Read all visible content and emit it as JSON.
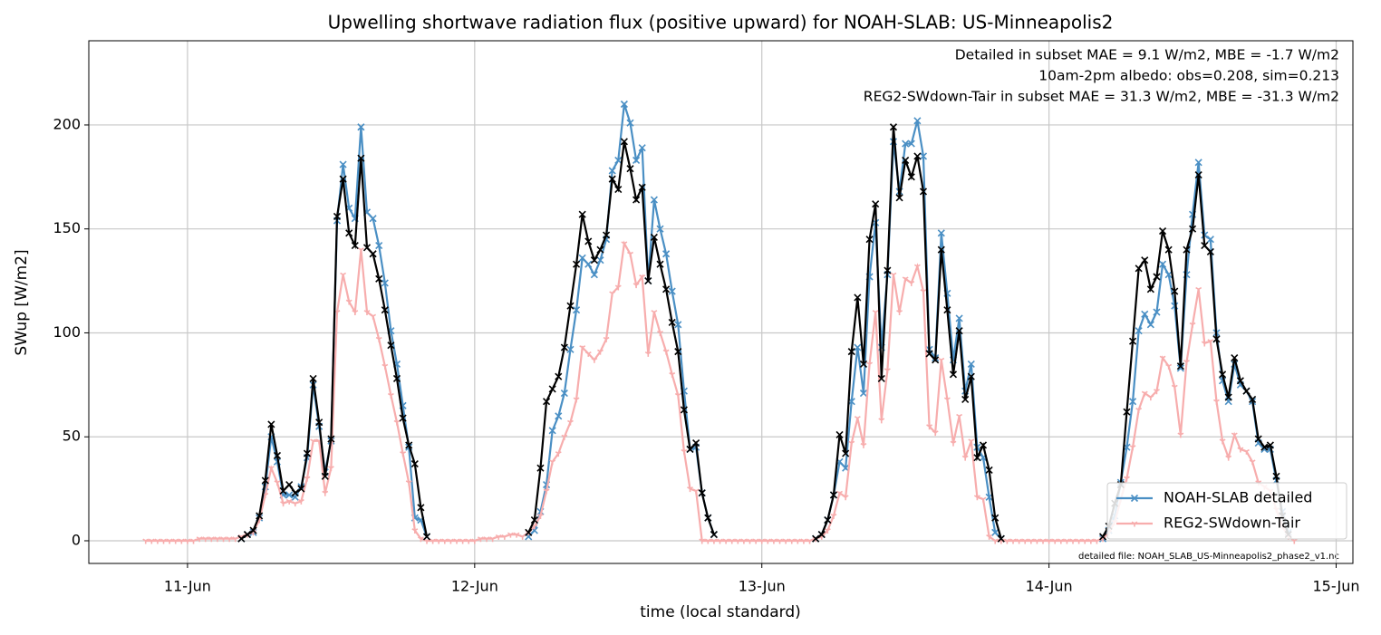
{
  "chart_data": {
    "type": "line",
    "title": "Upwelling shortwave radiation flux (positive upward) for NOAH-SLAB: US-Minneapolis2",
    "xlabel": "time (local standard)",
    "ylabel": "SWup [W/m2]",
    "annotations": [
      {
        "text": "Detailed in subset MAE = 9.1 W/m2, MBE = -1.7 W/m2",
        "color": "#1f77b4"
      },
      {
        "text": "10am-2pm albedo: obs=0.208, sim=0.213",
        "color": "#000000"
      },
      {
        "text": "REG2-SWdown-Tair in subset MAE = 31.3 W/m2, MBE = -31.3 W/m2",
        "color": "#ff0000"
      }
    ],
    "footnote": "detailed file: NOAH_SLAB_US-Minneapolis2_phase2_v1.nc",
    "xlim": [
      15.75,
      121.4
    ],
    "ylim": [
      -10.9,
      240.5
    ],
    "xticks": [
      {
        "value": 24,
        "label": "11-Jun"
      },
      {
        "value": 48,
        "label": "12-Jun"
      },
      {
        "value": 72,
        "label": "13-Jun"
      },
      {
        "value": 96,
        "label": "14-Jun"
      },
      {
        "value": 120,
        "label": "15-Jun"
      }
    ],
    "yticks": [
      0,
      50,
      100,
      150,
      200
    ],
    "grid": true,
    "legend": "lower right",
    "x": [
      20.5,
      21,
      21.5,
      22,
      22.5,
      23,
      23.5,
      24,
      24.5,
      25,
      25.5,
      26,
      26.5,
      27,
      27.5,
      28,
      28.5,
      29,
      29.5,
      30,
      30.5,
      31,
      31.5,
      32,
      32.5,
      33,
      33.5,
      34,
      34.5,
      35,
      35.5,
      36,
      36.5,
      37,
      37.5,
      38,
      38.5,
      39,
      39.5,
      40,
      40.5,
      41,
      41.5,
      42,
      42.5,
      43,
      43.5,
      44,
      44.5,
      45,
      45.5,
      46,
      46.5,
      47,
      47.5,
      48,
      48.5,
      49,
      49.5,
      50,
      50.5,
      51,
      51.5,
      52,
      52.5,
      53,
      53.5,
      54,
      54.5,
      55,
      55.5,
      56,
      56.5,
      57,
      57.5,
      58,
      58.5,
      59,
      59.5,
      60,
      60.5,
      61,
      61.5,
      62,
      62.5,
      63,
      63.5,
      64,
      64.5,
      65,
      65.5,
      66,
      66.5,
      67,
      67.5,
      68,
      68.5,
      69,
      69.5,
      70,
      70.5,
      71,
      71.5,
      72,
      72.5,
      73,
      73.5,
      74,
      74.5,
      75,
      75.5,
      76,
      76.5,
      77,
      77.5,
      78,
      78.5,
      79,
      79.5,
      80,
      80.5,
      81,
      81.5,
      82,
      82.5,
      83,
      83.5,
      84,
      84.5,
      85,
      85.5,
      86,
      86.5,
      87,
      87.5,
      88,
      88.5,
      89,
      89.5,
      90,
      90.5,
      91,
      91.5,
      92,
      92.5,
      93,
      93.5,
      94,
      94.5,
      95,
      95.5,
      96,
      96.5,
      97,
      97.5,
      98,
      98.5,
      99,
      99.5,
      100,
      100.5,
      101,
      101.5,
      102,
      102.5,
      103,
      103.5,
      104,
      104.5,
      105,
      105.5,
      106,
      106.5,
      107,
      107.5,
      108,
      108.5,
      109,
      109.5,
      110,
      110.5,
      111,
      111.5,
      112,
      112.5,
      113,
      113.5,
      114,
      114.5,
      115,
      115.5,
      116,
      116.5
    ],
    "series": [
      {
        "name": "NOAH-SLAB detailed",
        "color": "#4a8fc4",
        "marker": "x",
        "values": [
          null,
          null,
          null,
          null,
          null,
          null,
          null,
          null,
          null,
          null,
          null,
          null,
          null,
          null,
          null,
          null,
          1,
          3,
          4,
          11,
          26,
          50,
          38,
          22,
          22,
          21,
          26,
          40,
          75,
          55,
          33,
          48,
          154,
          181,
          160,
          155,
          199,
          158,
          155,
          142,
          124,
          101,
          85,
          65,
          45,
          11,
          10,
          2,
          null,
          null,
          null,
          null,
          null,
          null,
          null,
          null,
          null,
          null,
          null,
          null,
          null,
          null,
          null,
          null,
          2,
          5,
          14,
          27,
          53,
          60,
          71,
          92,
          111,
          136,
          133,
          128,
          135,
          145,
          178,
          183,
          210,
          201,
          183,
          189,
          125,
          164,
          150,
          138,
          120,
          104,
          72,
          44,
          45,
          23,
          11,
          3,
          null,
          null,
          null,
          null,
          null,
          null,
          null,
          null,
          null,
          null,
          null,
          null,
          null,
          null,
          null,
          null,
          1,
          3,
          10,
          22,
          38,
          35,
          67,
          93,
          71,
          127,
          153,
          93,
          128,
          192,
          168,
          191,
          191,
          202,
          185,
          92,
          88,
          148,
          119,
          87,
          107,
          72,
          85,
          45,
          40,
          21,
          4,
          1,
          null,
          null,
          null,
          null,
          null,
          null,
          null,
          null,
          null,
          null,
          null,
          null,
          null,
          null,
          null,
          null,
          1,
          5,
          12,
          28,
          45,
          67,
          101,
          109,
          104,
          110,
          133,
          128,
          113,
          83,
          128,
          157,
          182,
          147,
          145,
          100,
          77,
          67,
          85,
          75,
          72,
          67,
          47,
          44,
          44,
          29,
          14,
          4,
          null
        ]
      },
      {
        "name": "REG2-SWdown-Tair",
        "color": "#f7adad",
        "marker": "tri",
        "values": [
          0,
          0,
          0,
          0,
          0,
          0,
          0,
          0,
          0,
          1,
          1,
          1,
          1,
          1,
          1,
          1,
          2,
          3,
          4,
          10,
          22,
          35,
          28,
          18,
          19,
          18,
          19,
          30,
          48,
          48,
          23,
          35,
          110,
          128,
          115,
          110,
          140,
          110,
          108,
          97,
          84,
          70,
          57,
          42,
          28,
          5,
          1,
          0,
          0,
          0,
          0,
          0,
          0,
          0,
          0,
          0,
          1,
          1,
          1,
          2,
          2,
          3,
          3,
          2,
          4,
          7,
          12,
          24,
          38,
          42,
          50,
          57,
          68,
          93,
          90,
          87,
          91,
          97,
          119,
          122,
          143,
          138,
          123,
          127,
          90,
          110,
          100,
          91,
          80,
          70,
          43,
          25,
          24,
          0,
          0,
          0,
          0,
          0,
          0,
          0,
          0,
          0,
          0,
          0,
          0,
          0,
          0,
          0,
          0,
          0,
          0,
          0,
          1,
          2,
          5,
          12,
          23,
          21,
          47,
          59,
          46,
          85,
          110,
          58,
          82,
          128,
          110,
          126,
          124,
          132,
          120,
          55,
          52,
          87,
          68,
          47,
          60,
          40,
          48,
          21,
          20,
          2,
          0,
          0,
          0,
          0,
          0,
          0,
          0,
          0,
          0,
          0,
          0,
          0,
          0,
          0,
          0,
          0,
          0,
          0,
          1,
          4,
          9,
          20,
          30,
          45,
          63,
          71,
          69,
          72,
          88,
          84,
          74,
          51,
          86,
          104,
          121,
          95,
          96,
          67,
          48,
          40,
          51,
          44,
          43,
          38,
          28,
          26,
          24,
          15,
          7,
          2,
          0
        ]
      },
      {
        "color": "#000000",
        "marker": "x",
        "values": [
          null,
          null,
          null,
          null,
          null,
          null,
          null,
          null,
          null,
          null,
          null,
          null,
          null,
          null,
          null,
          null,
          1,
          3,
          5,
          12,
          29,
          56,
          41,
          24,
          27,
          23,
          25,
          42,
          78,
          57,
          31,
          49,
          156,
          174,
          148,
          142,
          184,
          141,
          138,
          126,
          111,
          94,
          78,
          59,
          46,
          37,
          16,
          2,
          null,
          null,
          null,
          null,
          null,
          null,
          null,
          null,
          null,
          null,
          null,
          null,
          null,
          null,
          null,
          null,
          4,
          10,
          35,
          67,
          73,
          79,
          93,
          113,
          133,
          157,
          144,
          135,
          140,
          147,
          174,
          169,
          192,
          179,
          164,
          170,
          125,
          146,
          133,
          121,
          105,
          91,
          63,
          44,
          47,
          23,
          11,
          3,
          null,
          null,
          null,
          null,
          null,
          null,
          null,
          null,
          null,
          null,
          null,
          null,
          null,
          null,
          null,
          null,
          1,
          3,
          10,
          22,
          51,
          42,
          91,
          117,
          85,
          145,
          162,
          78,
          130,
          199,
          165,
          183,
          175,
          185,
          168,
          90,
          87,
          140,
          111,
          80,
          101,
          68,
          79,
          40,
          46,
          34,
          11,
          1,
          null,
          null,
          null,
          null,
          null,
          null,
          null,
          null,
          null,
          null,
          null,
          null,
          null,
          null,
          null,
          null,
          2,
          7,
          18,
          27,
          62,
          96,
          131,
          135,
          121,
          127,
          149,
          140,
          120,
          84,
          140,
          150,
          176,
          142,
          139,
          97,
          80,
          69,
          88,
          77,
          72,
          68,
          49,
          45,
          46,
          31,
          12,
          3,
          null
        ]
      }
    ]
  }
}
